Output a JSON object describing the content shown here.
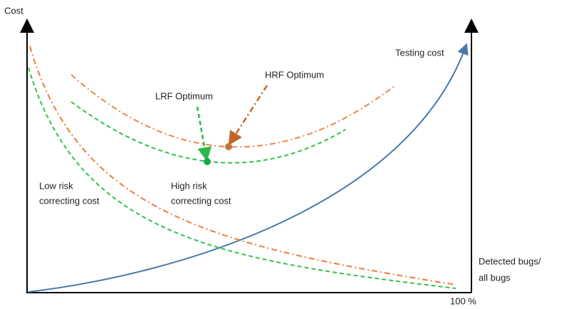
{
  "axes": {
    "y_label": "Cost",
    "x_label": [
      "Detected bugs/",
      "all bugs"
    ],
    "x_end": "100 %"
  },
  "labels": {
    "testing_cost": "Testing cost",
    "hrf_optimum": "HRF Optimum",
    "lrf_optimum": "LRF Optimum",
    "low_risk": [
      "Low risk",
      "correcting cost"
    ],
    "high_risk": [
      "High risk",
      "correcting cost"
    ]
  }
}
